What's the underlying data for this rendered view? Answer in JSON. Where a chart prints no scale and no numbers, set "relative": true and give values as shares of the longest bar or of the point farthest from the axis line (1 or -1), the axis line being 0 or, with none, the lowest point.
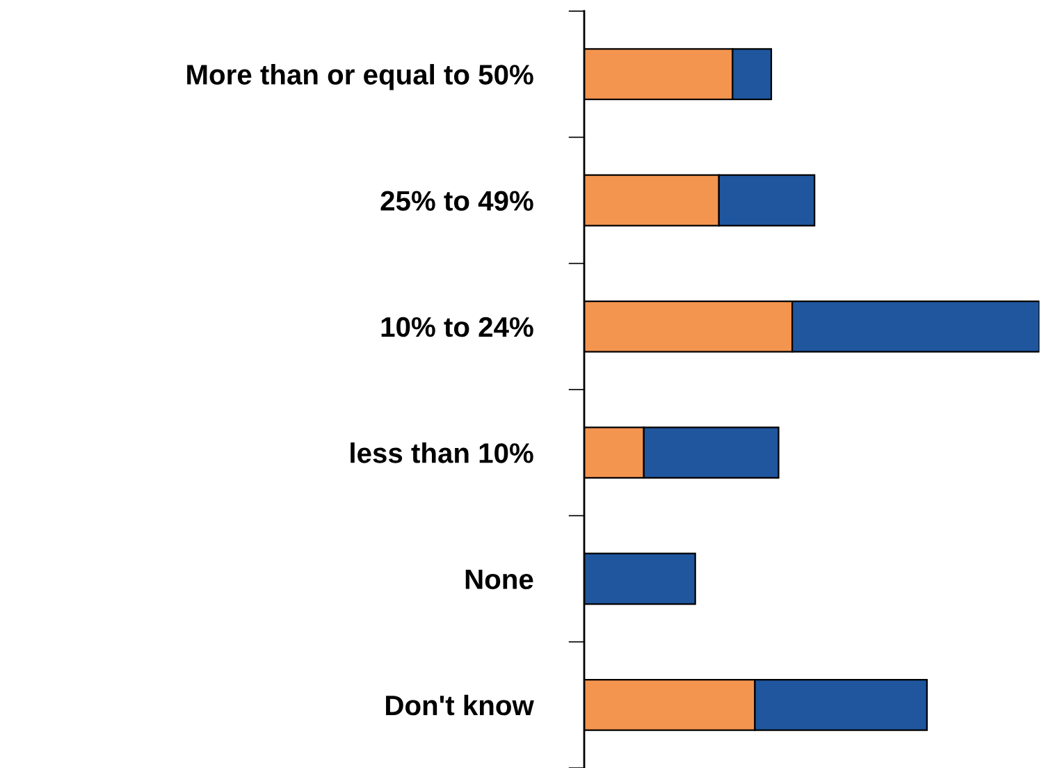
{
  "chart_data": {
    "type": "bar",
    "orientation": "horizontal",
    "stacked": true,
    "relative": true,
    "categories": [
      "More than or equal to 50%",
      "25% to 49%",
      "10% to 24%",
      "less than 10%",
      "None",
      "Don't know"
    ],
    "series": [
      {
        "color": "#f4954f",
        "values": [
          0.326,
          0.296,
          0.457,
          0.131,
          0,
          0.375
        ]
      },
      {
        "color": "#1f569e",
        "values": [
          0.085,
          0.21,
          0.543,
          0.296,
          0.244,
          0.378
        ]
      }
    ],
    "grid": false,
    "legend": false
  }
}
